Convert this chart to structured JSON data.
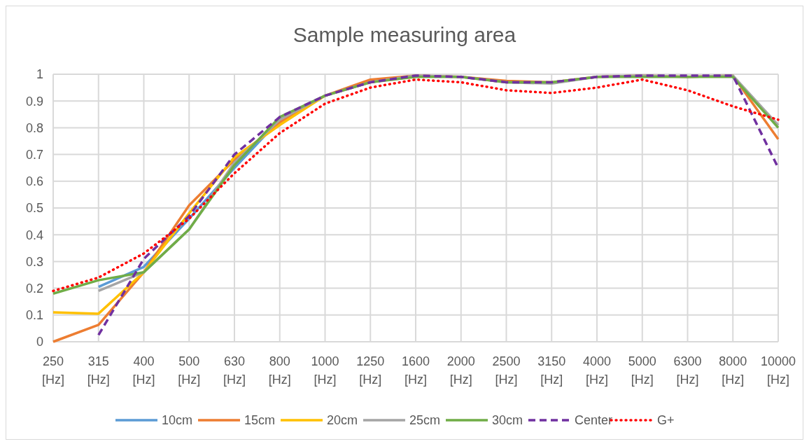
{
  "chart_data": {
    "type": "line",
    "title": "Sample measuring area",
    "categories": [
      "250 [Hz]",
      "315 [Hz]",
      "400 [Hz]",
      "500 [Hz]",
      "630 [Hz]",
      "800 [Hz]",
      "1000 [Hz]",
      "1250 [Hz]",
      "1600 [Hz]",
      "2000 [Hz]",
      "2500 [Hz]",
      "3150 [Hz]",
      "4000 [Hz]",
      "5000 [Hz]",
      "6300 [Hz]",
      "8000 [Hz]",
      "10000 [Hz]"
    ],
    "series": [
      {
        "name": "10cm",
        "color": "#5b9bd5",
        "line_style": "solid",
        "values": [
          null,
          0.205,
          0.28,
          0.46,
          0.65,
          0.83,
          null,
          null,
          null,
          null,
          null,
          null,
          null,
          null,
          null,
          null,
          null
        ]
      },
      {
        "name": "15cm",
        "color": "#ed7d31",
        "line_style": "solid",
        "values": [
          0,
          0.063,
          0.26,
          0.51,
          0.68,
          0.82,
          0.92,
          0.98,
          0.995,
          0.99,
          0.975,
          0.97,
          0.99,
          0.995,
          0.99,
          0.995,
          0.757
        ]
      },
      {
        "name": "20cm",
        "color": "#ffc000",
        "line_style": "solid",
        "values": [
          0.11,
          0.105,
          0.26,
          0.48,
          0.69,
          0.81,
          0.92,
          null,
          null,
          null,
          null,
          null,
          null,
          null,
          null,
          null,
          null
        ]
      },
      {
        "name": "25cm",
        "color": "#a5a5a5",
        "line_style": "solid",
        "values": [
          null,
          0.19,
          0.26,
          0.42,
          0.67,
          0.83,
          0.92,
          0.97,
          0.995,
          0.99,
          0.97,
          0.965,
          0.99,
          0.995,
          0.99,
          0.995,
          0.81
        ]
      },
      {
        "name": "30cm",
        "color": "#70ad47",
        "line_style": "solid",
        "values": [
          0.18,
          0.23,
          0.26,
          0.42,
          0.66,
          0.84,
          0.92,
          0.97,
          0.99,
          0.99,
          0.97,
          0.97,
          0.99,
          0.99,
          0.99,
          0.99,
          0.8
        ]
      },
      {
        "name": "Center",
        "color": "#7030a0",
        "line_style": "dashed",
        "values": [
          null,
          0.025,
          0.31,
          0.47,
          0.7,
          0.84,
          0.92,
          0.97,
          0.995,
          0.99,
          0.97,
          0.97,
          0.99,
          0.995,
          0.995,
          0.995,
          0.65
        ]
      },
      {
        "name": "G+",
        "color": "#ff0000",
        "line_style": "dotted",
        "values": [
          0.19,
          0.24,
          0.33,
          0.46,
          0.63,
          0.78,
          0.89,
          0.95,
          0.98,
          0.97,
          0.94,
          0.93,
          0.95,
          0.98,
          0.94,
          0.88,
          0.83
        ]
      }
    ],
    "ylim": [
      0,
      1
    ],
    "yticks": [
      0,
      0.1,
      0.2,
      0.3,
      0.4,
      0.5,
      0.6,
      0.7,
      0.8,
      0.9,
      1
    ],
    "grid": true,
    "legend": "bottom",
    "marker": "none"
  }
}
